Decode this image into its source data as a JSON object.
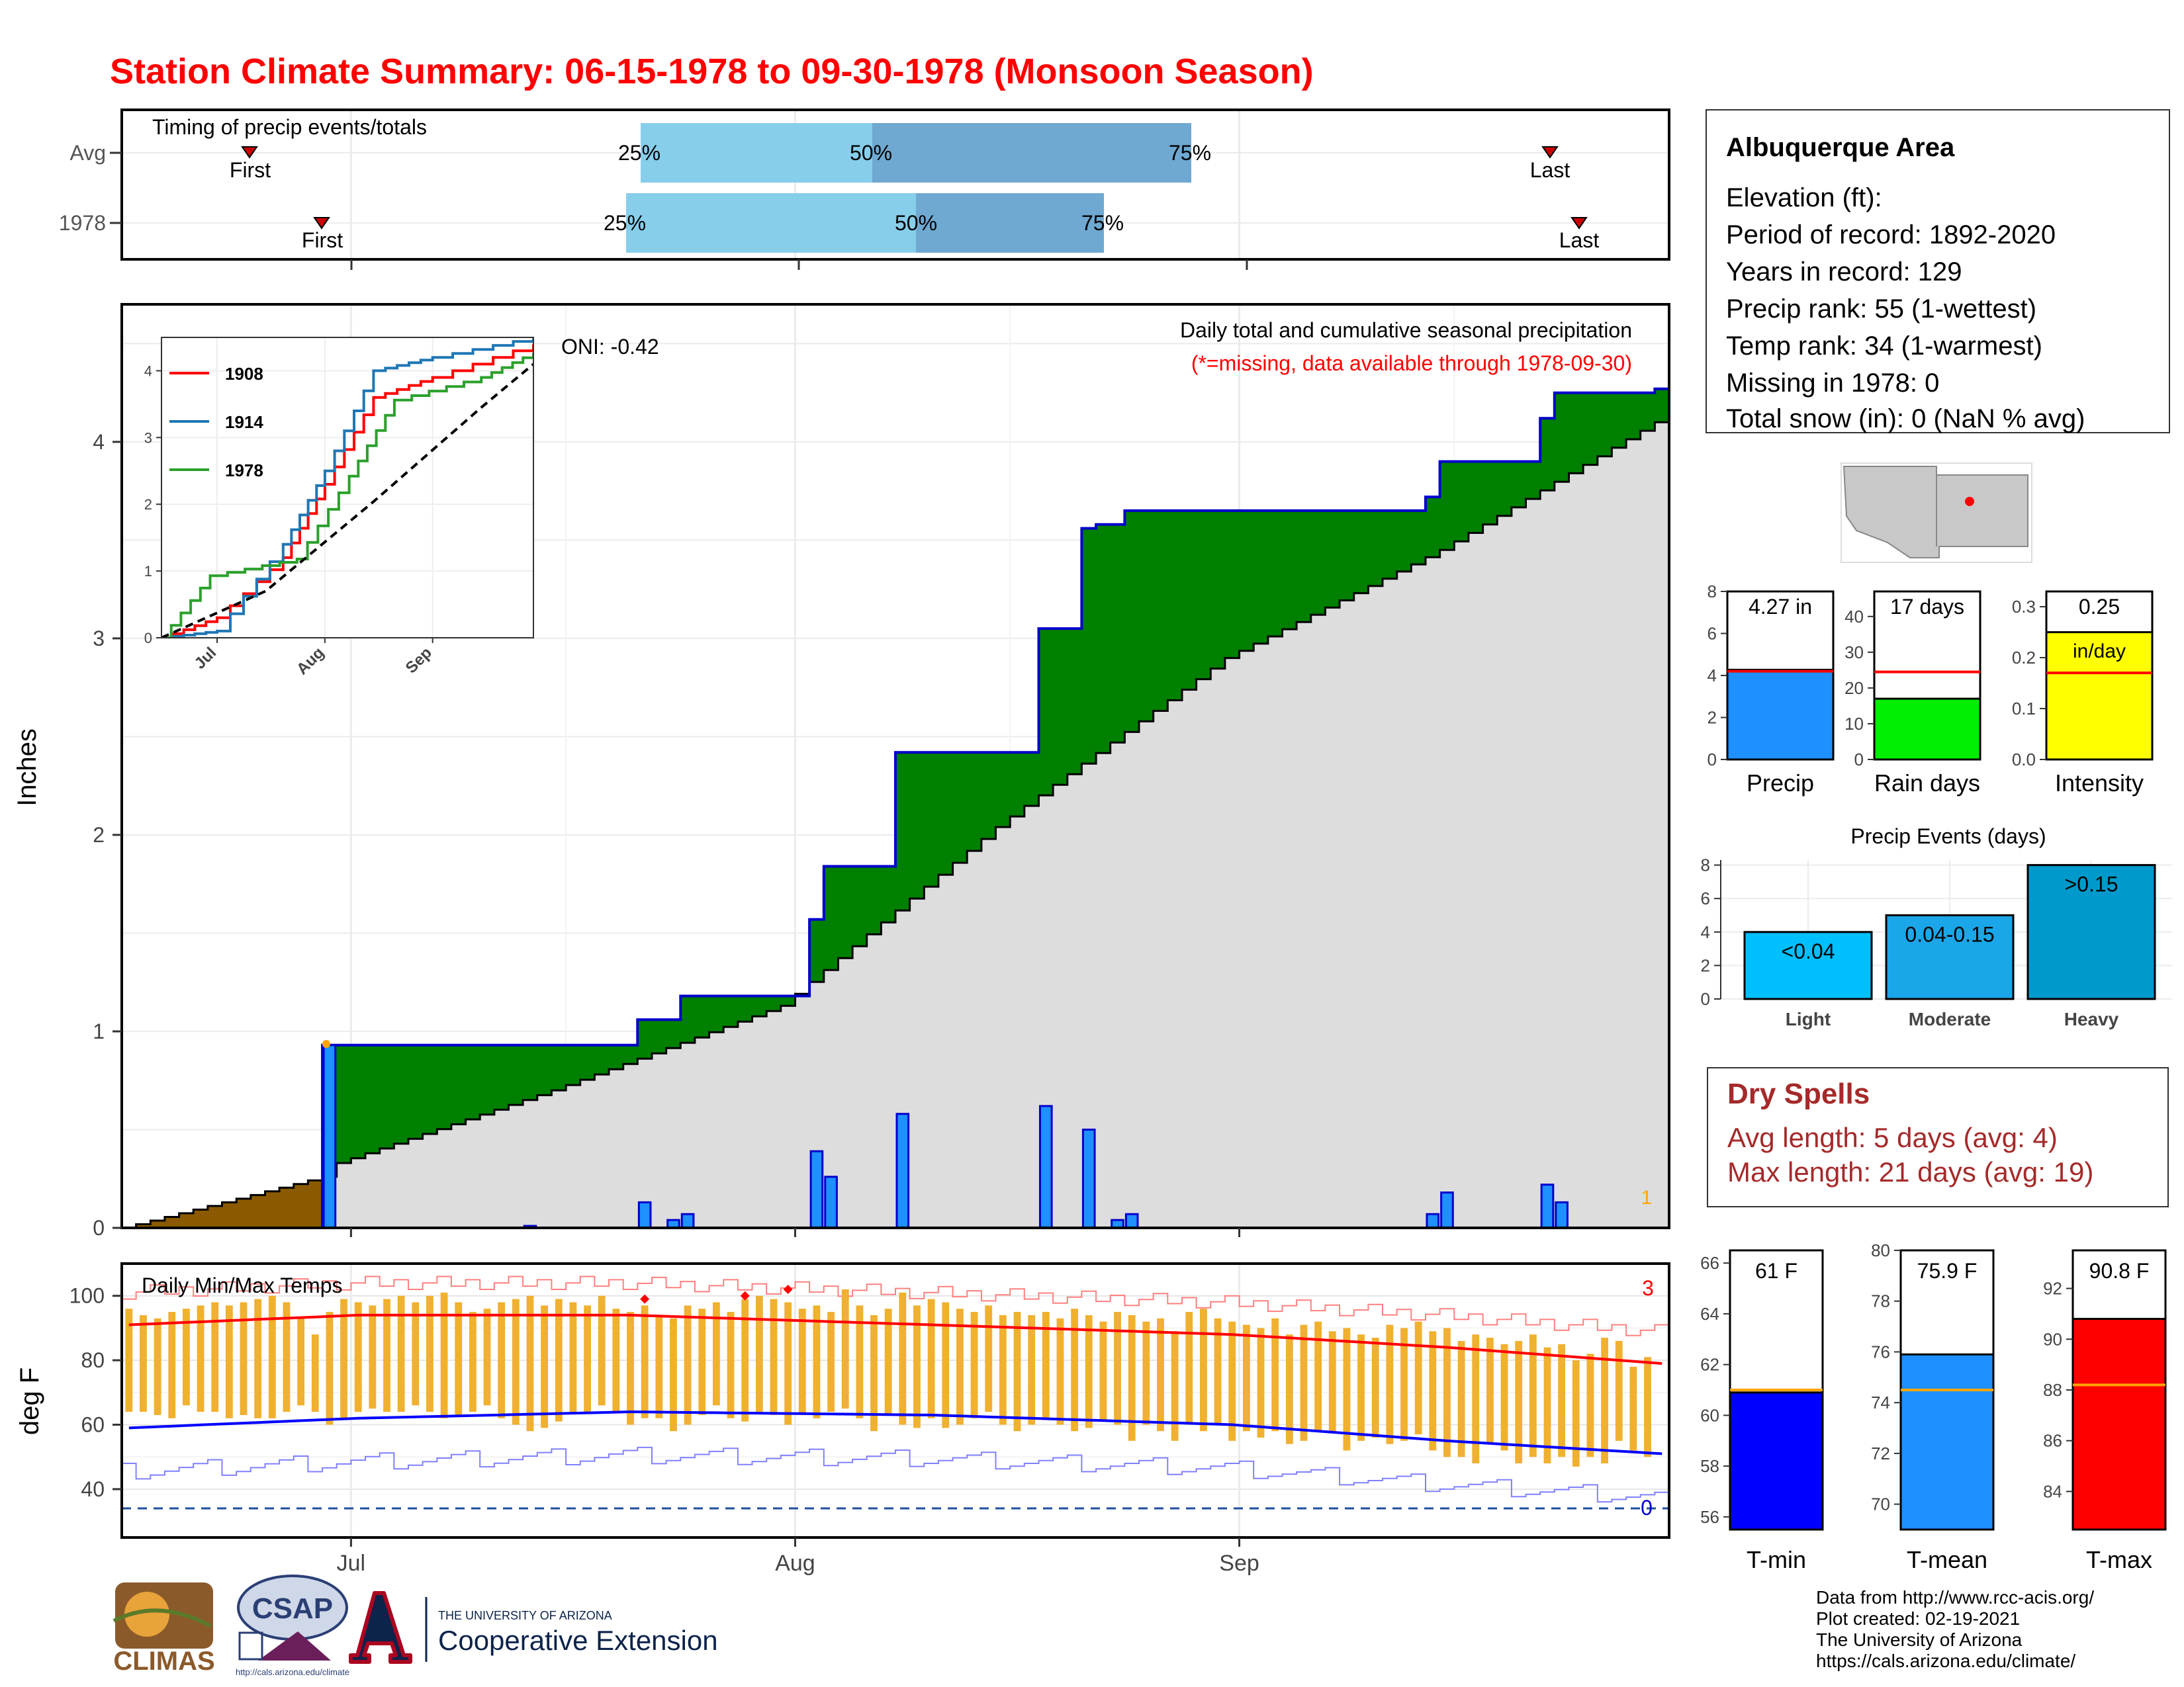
{
  "title": "Station Climate Summary: 06-15-1978 to 09-30-1978 (Monsoon Season)",
  "colors": {
    "title": "#ff0000",
    "cum_year": "#0000cc",
    "above_avg": "#008000",
    "below_avg": "#8b5a00",
    "avg_fill": "#dddddd",
    "daily_bar": "#1e90ff",
    "tmax_avg": "#ff0000",
    "tmin_avg": "#0000ff",
    "temp_range": "#f0b030",
    "timing_light": "#87ceeb",
    "timing_dark": "#6fa8d0",
    "precip_bar": "#1e90ff",
    "raindays_bar": "#00ee00",
    "intensity_bar": "#ffff00",
    "light_bar": "#00bfff",
    "moderate_bar": "#1aa6e8",
    "heavy_bar": "#0099cc",
    "tmin_bar": "#0000ff",
    "tmean_bar": "#1e90ff",
    "tmax_bar": "#ff0000",
    "dry_spells": "#a52a2a"
  },
  "x_axis": {
    "months": [
      "Jul",
      "Aug",
      "Sep"
    ]
  },
  "timing": {
    "label": "Timing of precip events/totals",
    "rows": [
      {
        "name": "Avg",
        "first": "First",
        "last": "Last",
        "p25": "25%",
        "p50": "50%",
        "p75": "75%"
      },
      {
        "name": "1978",
        "first": "First",
        "last": "Last",
        "p25": "25%",
        "p50": "50%",
        "p75": "75%"
      }
    ]
  },
  "precip_panel": {
    "ylabel": "Inches",
    "title": "Daily total and cumulative seasonal precipitation",
    "subtitle": "(*=missing, data available through 1978-09-30)",
    "oni": "ONI: -0.42",
    "missing_count": "1",
    "yticks": [
      "0",
      "1",
      "2",
      "3",
      "4"
    ]
  },
  "inset": {
    "legend": [
      "1908",
      "1914",
      "1978"
    ],
    "colors": [
      "#ff0000",
      "#1f77b4",
      "#2ca02c"
    ],
    "yticks": [
      "0",
      "1",
      "2",
      "3",
      "4"
    ],
    "xticks": [
      "Jul",
      "Aug",
      "Sep"
    ]
  },
  "temp_panel": {
    "ylabel": "deg F",
    "label": "Daily Min/Max Temps",
    "record_high_count": "3",
    "record_low_count": "0",
    "yticks": [
      "40",
      "60",
      "80",
      "100"
    ]
  },
  "info": {
    "station": "Albuquerque Area",
    "lines": [
      "Elevation (ft):",
      "Period of record: 1892-2020",
      "Years in record: 129",
      "Precip rank: 55 (1-wettest)",
      "Temp rank: 34 (1-warmest)",
      "Missing in 1978: 0",
      "Total snow (in): 0 (NaN % avg)"
    ]
  },
  "mini_precip": [
    {
      "name": "Precip",
      "value": 4.27,
      "avg": 4.2,
      "label": "4.27 in",
      "ymax": 8,
      "ticks": [
        "0",
        "2",
        "4",
        "6",
        "8"
      ]
    },
    {
      "name": "Rain days",
      "value": 17,
      "avg": 24.5,
      "label": "17 days",
      "ymax": 47,
      "ticks": [
        "0",
        "10",
        "20",
        "30",
        "40"
      ]
    },
    {
      "name": "Intensity",
      "value": 0.25,
      "avg": 0.17,
      "label": "0.25",
      "label2": "in/day",
      "ymax": 0.33,
      "ticks": [
        "0.0",
        "0.1",
        "0.2",
        "0.3"
      ]
    }
  ],
  "precip_events": {
    "title": "Precip Events (days)",
    "ticks": [
      "0",
      "2",
      "4",
      "6",
      "8"
    ],
    "bars": [
      {
        "name": "Light",
        "label": "<0.04",
        "value": 4
      },
      {
        "name": "Moderate",
        "label": "0.04-0.15",
        "value": 5
      },
      {
        "name": "Heavy",
        "label": ">0.15",
        "value": 8
      }
    ]
  },
  "dry_spells": {
    "title": "Dry Spells",
    "avg_length": "Avg length: 5 days (avg: 4)",
    "max_length": "Max length: 21 days (avg: 19)"
  },
  "mini_temp": [
    {
      "name": "T-min",
      "value": 60.9,
      "avg": 61.0,
      "label": "61 F",
      "ymin": 55.5,
      "ymax": 66.5,
      "ticks": [
        "56",
        "58",
        "60",
        "62",
        "64",
        "66"
      ]
    },
    {
      "name": "T-mean",
      "value": 75.9,
      "avg": 74.5,
      "label": "75.9 F",
      "ymin": 69,
      "ymax": 80,
      "ticks": [
        "70",
        "72",
        "74",
        "76",
        "78",
        "80"
      ]
    },
    {
      "name": "T-max",
      "value": 90.8,
      "avg": 88.2,
      "label": "90.8 F",
      "ymin": 82.5,
      "ymax": 93.5,
      "ticks": [
        "84",
        "86",
        "88",
        "90",
        "92"
      ]
    }
  ],
  "credits": [
    "Data from http://www.rcc-acis.org/",
    "Plot created: 02-19-2021",
    "The University of Arizona",
    "https://cals.arizona.edu/climate/"
  ],
  "logos": {
    "climas": "CLIMAS",
    "csap": "CSAP",
    "csap_url": "http://cals.arizona.edu/climate",
    "ua_small": "THE UNIVERSITY OF ARIZONA",
    "ua_big": "Cooperative Extension"
  },
  "chart_data": [
    {
      "type": "area",
      "title": "Daily total and cumulative seasonal precipitation",
      "xlabel": "",
      "ylabel": "Inches",
      "x_range": [
        "1978-06-15",
        "1978-09-30"
      ],
      "ylim": [
        0,
        4.7
      ],
      "series": [
        {
          "name": "1978",
          "cumulative_steps": [
            [
              "1978-06-15",
              0.0
            ],
            [
              "1978-06-29",
              0.93
            ],
            [
              "1978-07-20",
              0.93
            ],
            [
              "1978-07-21",
              1.06
            ],
            [
              "1978-07-24",
              1.18
            ],
            [
              "1978-08-01",
              1.18
            ],
            [
              "1978-08-02",
              1.57
            ],
            [
              "1978-08-03",
              1.84
            ],
            [
              "1978-08-07",
              1.84
            ],
            [
              "1978-08-08",
              2.42
            ],
            [
              "1978-08-17",
              2.42
            ],
            [
              "1978-08-18",
              3.05
            ],
            [
              "1978-08-21",
              3.56
            ],
            [
              "1978-08-22",
              3.58
            ],
            [
              "1978-08-24",
              3.65
            ],
            [
              "1978-09-13",
              3.65
            ],
            [
              "1978-09-14",
              3.72
            ],
            [
              "1978-09-15",
              3.9
            ],
            [
              "1978-09-21",
              3.9
            ],
            [
              "1978-09-22",
              4.12
            ],
            [
              "1978-09-23",
              4.25
            ],
            [
              "1978-09-30",
              4.27
            ]
          ],
          "daily": [
            [
              "1978-06-29",
              0.93
            ],
            [
              "1978-07-13",
              0.01
            ],
            [
              "1978-07-21",
              0.13
            ],
            [
              "1978-07-23",
              0.04
            ],
            [
              "1978-07-24",
              0.07
            ],
            [
              "1978-08-02",
              0.39
            ],
            [
              "1978-08-03",
              0.26
            ],
            [
              "1978-08-08",
              0.58
            ],
            [
              "1978-08-18",
              0.62
            ],
            [
              "1978-08-21",
              0.5
            ],
            [
              "1978-08-23",
              0.04
            ],
            [
              "1978-08-24",
              0.07
            ],
            [
              "1978-09-14",
              0.07
            ],
            [
              "1978-09-15",
              0.18
            ],
            [
              "1978-09-22",
              0.22
            ],
            [
              "1978-09-23",
              0.13
            ]
          ]
        },
        {
          "name": "Avg",
          "cumulative_steps": [
            [
              "1978-06-15",
              0.0
            ],
            [
              "1978-06-29",
              0.26
            ],
            [
              "1978-06-30",
              0.33
            ],
            [
              "1978-07-15",
              0.7
            ],
            [
              "1978-07-31",
              1.13
            ],
            [
              "1978-08-15",
              2.04
            ],
            [
              "1978-08-31",
              2.9
            ],
            [
              "1978-09-15",
              3.45
            ],
            [
              "1978-09-30",
              4.1
            ]
          ]
        }
      ],
      "annotations": [
        "ONI: -0.42",
        "(*=missing, data available through 1978-09-30)",
        "1"
      ]
    },
    {
      "type": "line",
      "title": "",
      "xlabel": "",
      "ylabel": "",
      "xticks": [
        "Jul",
        "Aug",
        "Sep"
      ],
      "ylim": [
        0,
        4.5
      ],
      "series": [
        {
          "name": "1908",
          "values": [
            [
              "1978-06-15",
              0.0
            ],
            [
              "1978-07-01",
              0.3
            ],
            [
              "1978-07-20",
              1.2
            ],
            [
              "1978-08-01",
              2.3
            ],
            [
              "1978-08-15",
              3.6
            ],
            [
              "1978-09-01",
              3.9
            ],
            [
              "1978-09-30",
              4.4
            ]
          ]
        },
        {
          "name": "1914",
          "values": [
            [
              "1978-06-15",
              0.0
            ],
            [
              "1978-07-01",
              0.1
            ],
            [
              "1978-07-20",
              1.4
            ],
            [
              "1978-08-01",
              2.5
            ],
            [
              "1978-08-15",
              4.0
            ],
            [
              "1978-09-01",
              4.2
            ],
            [
              "1978-09-30",
              4.5
            ]
          ]
        },
        {
          "name": "1978",
          "values": [
            [
              "1978-06-15",
              0.0
            ],
            [
              "1978-06-29",
              0.93
            ],
            [
              "1978-07-24",
              1.18
            ],
            [
              "1978-08-08",
              2.42
            ],
            [
              "1978-08-21",
              3.56
            ],
            [
              "1978-09-15",
              3.9
            ],
            [
              "1978-09-30",
              4.27
            ]
          ]
        },
        {
          "name": "Avg",
          "values": [
            [
              "1978-06-15",
              0.0
            ],
            [
              "1978-07-15",
              0.7
            ],
            [
              "1978-08-15",
              2.04
            ],
            [
              "1978-09-15",
              3.45
            ],
            [
              "1978-09-30",
              4.1
            ]
          ]
        }
      ]
    },
    {
      "type": "bar",
      "title": "Daily Min/Max Temps",
      "xlabel": "",
      "ylabel": "deg F",
      "ylim": [
        25,
        110
      ],
      "avg_tmax_curve": [
        [
          "1978-06-15",
          91
        ],
        [
          "1978-07-01",
          94
        ],
        [
          "1978-07-20",
          94
        ],
        [
          "1978-08-10",
          91
        ],
        [
          "1978-08-31",
          88
        ],
        [
          "1978-09-15",
          84
        ],
        [
          "1978-09-30",
          79
        ]
      ],
      "avg_tmin_curve": [
        [
          "1978-06-15",
          59
        ],
        [
          "1978-07-01",
          62
        ],
        [
          "1978-07-20",
          64
        ],
        [
          "1978-08-10",
          63
        ],
        [
          "1978-08-31",
          60
        ],
        [
          "1978-09-15",
          55
        ],
        [
          "1978-09-30",
          51
        ]
      ],
      "daily_max": [
        96,
        94,
        93,
        95,
        96,
        97,
        98,
        97,
        98,
        99,
        100,
        98,
        93,
        88,
        95,
        99,
        98,
        97,
        99,
        100,
        98,
        100,
        101,
        98,
        95,
        96,
        98,
        99,
        100,
        97,
        99,
        98,
        97,
        100,
        96,
        95,
        97,
        94,
        93,
        97,
        96,
        98,
        95,
        99,
        100,
        99,
        98,
        96,
        97,
        95,
        102,
        97,
        94,
        96,
        101,
        97,
        99,
        98,
        96,
        95,
        97,
        94,
        95,
        94,
        95,
        93,
        96,
        94,
        92,
        95,
        94,
        92,
        93,
        89,
        95,
        96,
        93,
        92,
        91,
        90,
        93,
        88,
        91,
        92,
        89,
        90,
        88,
        87,
        91,
        90,
        92,
        89,
        90,
        86,
        88,
        87,
        85,
        86,
        88,
        84,
        85,
        80,
        82,
        87,
        86,
        78,
        81
      ],
      "daily_min": [
        64,
        64,
        63,
        62,
        66,
        64,
        64,
        62,
        63,
        62,
        62,
        64,
        66,
        64,
        60,
        62,
        64,
        65,
        64,
        64,
        66,
        64,
        62,
        63,
        64,
        66,
        62,
        60,
        58,
        59,
        61,
        64,
        64,
        66,
        64,
        60,
        62,
        62,
        58,
        60,
        63,
        66,
        62,
        61,
        64,
        63,
        60,
        63,
        62,
        64,
        65,
        62,
        58,
        63,
        60,
        59,
        62,
        59,
        60,
        62,
        64,
        60,
        58,
        60,
        62,
        60,
        58,
        59,
        61,
        60,
        55,
        60,
        58,
        55,
        60,
        58,
        60,
        55,
        58,
        56,
        58,
        54,
        55,
        58,
        58,
        52,
        55,
        56,
        54,
        55,
        57,
        52,
        50,
        50,
        48,
        54,
        52,
        48,
        50,
        48,
        50,
        47,
        50,
        48,
        55,
        52,
        50
      ],
      "record_highs": [
        [
          "1978-07-21",
          99
        ],
        [
          "1978-07-28",
          100
        ],
        [
          "1978-07-31",
          102
        ]
      ],
      "record_high_count": 3,
      "record_low_count": 0
    },
    {
      "type": "bar",
      "title": "",
      "categories": [
        "Precip",
        "Rain days",
        "Intensity"
      ],
      "values": [
        4.27,
        17,
        0.25
      ],
      "averages": [
        4.2,
        24.5,
        0.17
      ]
    },
    {
      "type": "bar",
      "title": "Precip Events (days)",
      "categories": [
        "Light",
        "Moderate",
        "Heavy"
      ],
      "values": [
        4,
        5,
        8
      ],
      "ylim": [
        0,
        8.3
      ]
    },
    {
      "type": "bar",
      "title": "",
      "categories": [
        "T-min",
        "T-mean",
        "T-max"
      ],
      "values": [
        60.9,
        75.9,
        90.8
      ],
      "averages": [
        61.0,
        74.5,
        88.2
      ]
    }
  ]
}
